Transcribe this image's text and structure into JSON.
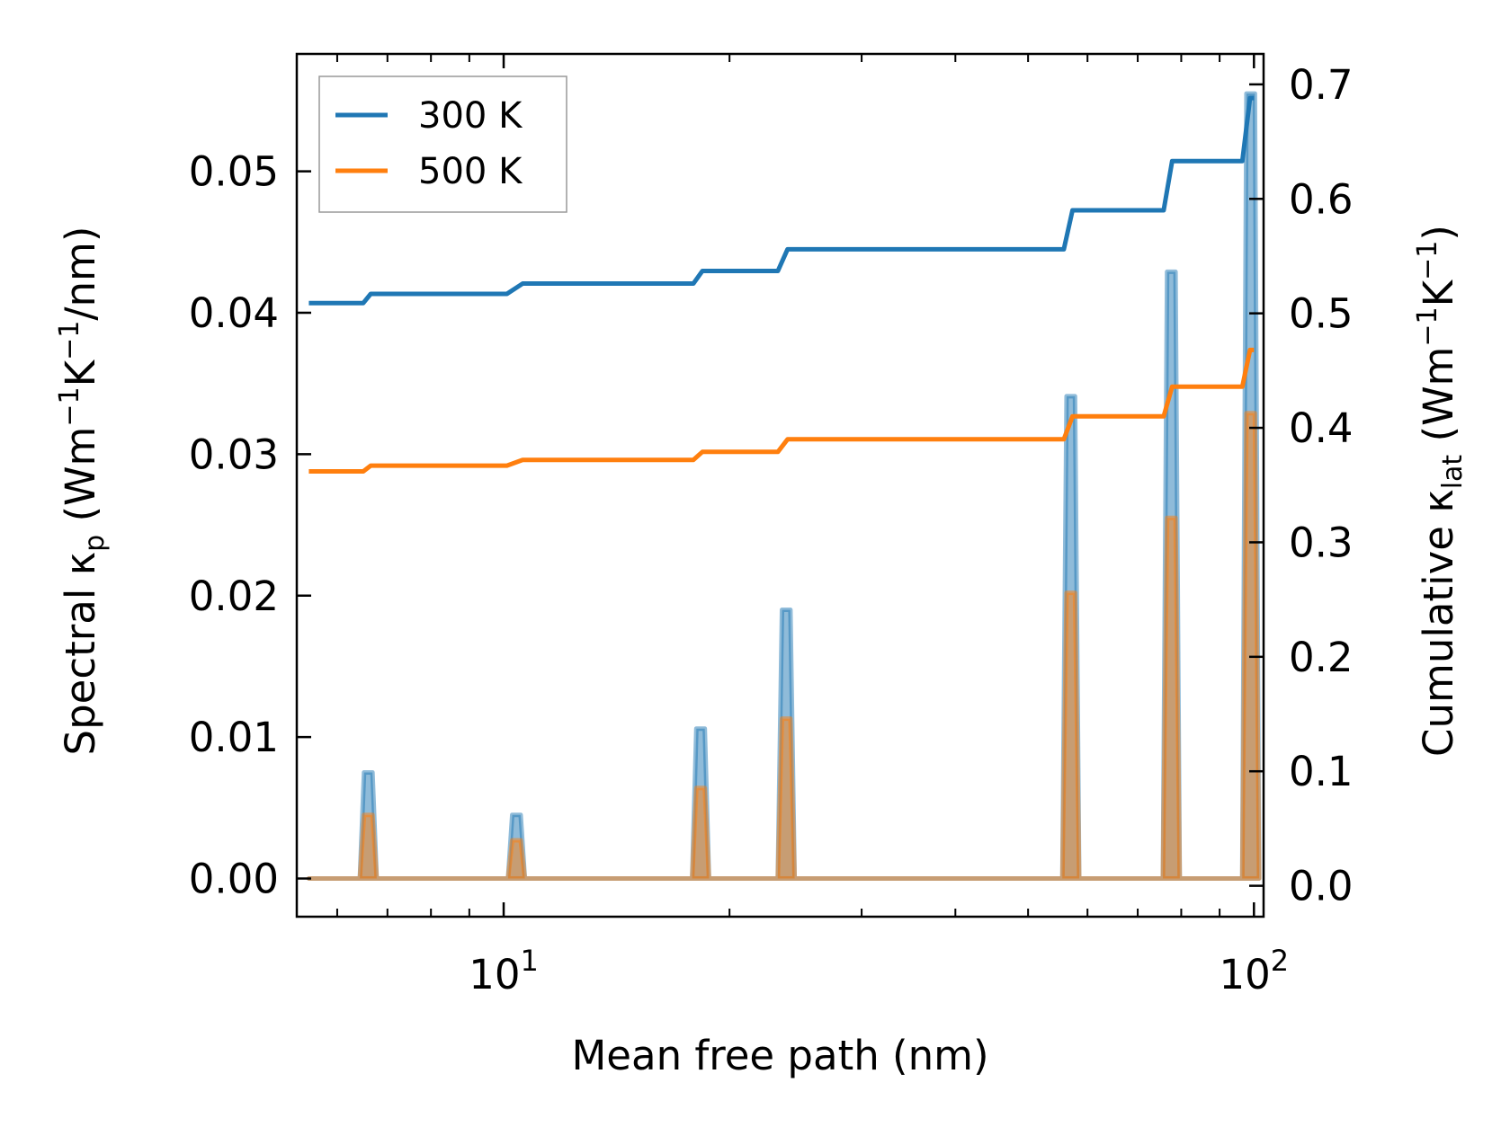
{
  "chart_data": {
    "type": "line",
    "xscale": "log",
    "xlim": [
      5.3,
      103
    ],
    "ylim": [
      -0.0027,
      0.0583
    ],
    "y2lim": [
      -0.027,
      0.7266
    ],
    "xlabel": {
      "main": "Mean free path (nm)"
    },
    "ylabel": {
      "prefix": "Spectral κ",
      "sub": "p",
      "units_open": " (Wm",
      "sup1": "−1",
      "units_mid": "K",
      "sup2": "−1",
      "units_close": "/nm)"
    },
    "y2label": {
      "prefix": "Cumulative κ",
      "sub": "lat",
      "units_open": " (Wm",
      "sup1": "−1",
      "units_mid": "K",
      "sup2": "−1",
      "units_close": ")"
    },
    "x_ticks": [
      {
        "value": 10,
        "base": "10",
        "exp": "1"
      },
      {
        "value": 100,
        "base": "10",
        "exp": "2"
      }
    ],
    "y_ticks": [
      {
        "value": 0.0,
        "label": "0.00"
      },
      {
        "value": 0.01,
        "label": "0.01"
      },
      {
        "value": 0.02,
        "label": "0.02"
      },
      {
        "value": 0.03,
        "label": "0.03"
      },
      {
        "value": 0.04,
        "label": "0.04"
      },
      {
        "value": 0.05,
        "label": "0.05"
      }
    ],
    "y2_ticks": [
      {
        "value": 0.0,
        "label": "0.0"
      },
      {
        "value": 0.1,
        "label": "0.1"
      },
      {
        "value": 0.2,
        "label": "0.2"
      },
      {
        "value": 0.3,
        "label": "0.3"
      },
      {
        "value": 0.4,
        "label": "0.4"
      },
      {
        "value": 0.5,
        "label": "0.5"
      },
      {
        "value": 0.6,
        "label": "0.6"
      },
      {
        "value": 0.7,
        "label": "0.7"
      }
    ],
    "peak_width_factor": 1.013,
    "legend": {
      "position": "top-left"
    },
    "series": [
      {
        "name": "300 K",
        "color": "#1f77b4",
        "spectral": [
          {
            "x": 6.6,
            "y": 0.0075
          },
          {
            "x": 10.4,
            "y": 0.0045
          },
          {
            "x": 18.3,
            "y": 0.0106
          },
          {
            "x": 23.8,
            "y": 0.019
          },
          {
            "x": 57.0,
            "y": 0.0341
          },
          {
            "x": 77.6,
            "y": 0.0429
          },
          {
            "x": 99.0,
            "y": 0.0555
          }
        ],
        "cumulative": {
          "start_x": 5.5,
          "end_x": 100,
          "steps": [
            {
              "x": 6.5,
              "y": 0.509
            },
            {
              "x": 6.65,
              "y": 0.517
            },
            {
              "x": 10.1,
              "y": 0.517
            },
            {
              "x": 10.6,
              "y": 0.526
            },
            {
              "x": 17.9,
              "y": 0.526
            },
            {
              "x": 18.4,
              "y": 0.537
            },
            {
              "x": 23.2,
              "y": 0.537
            },
            {
              "x": 23.9,
              "y": 0.556
            },
            {
              "x": 55.8,
              "y": 0.556
            },
            {
              "x": 57.3,
              "y": 0.59
            },
            {
              "x": 75.8,
              "y": 0.59
            },
            {
              "x": 77.8,
              "y": 0.633
            },
            {
              "x": 96.5,
              "y": 0.633
            },
            {
              "x": 98.8,
              "y": 0.688
            }
          ],
          "start_y": 0.509
        }
      },
      {
        "name": "500 K",
        "color": "#ff7f0e",
        "spectral": [
          {
            "x": 6.6,
            "y": 0.0045
          },
          {
            "x": 10.4,
            "y": 0.0027
          },
          {
            "x": 18.3,
            "y": 0.0064
          },
          {
            "x": 23.8,
            "y": 0.0113
          },
          {
            "x": 57.0,
            "y": 0.0202
          },
          {
            "x": 77.6,
            "y": 0.0255
          },
          {
            "x": 99.0,
            "y": 0.0329
          }
        ],
        "cumulative": {
          "start_x": 5.5,
          "end_x": 100,
          "steps": [
            {
              "x": 6.5,
              "y": 0.362
            },
            {
              "x": 6.65,
              "y": 0.367
            },
            {
              "x": 10.1,
              "y": 0.367
            },
            {
              "x": 10.6,
              "y": 0.372
            },
            {
              "x": 17.9,
              "y": 0.372
            },
            {
              "x": 18.4,
              "y": 0.379
            },
            {
              "x": 23.2,
              "y": 0.379
            },
            {
              "x": 23.9,
              "y": 0.39
            },
            {
              "x": 55.8,
              "y": 0.39
            },
            {
              "x": 57.3,
              "y": 0.41
            },
            {
              "x": 75.8,
              "y": 0.41
            },
            {
              "x": 77.8,
              "y": 0.436
            },
            {
              "x": 96.5,
              "y": 0.436
            },
            {
              "x": 98.8,
              "y": 0.468
            }
          ],
          "start_y": 0.362
        }
      }
    ]
  }
}
